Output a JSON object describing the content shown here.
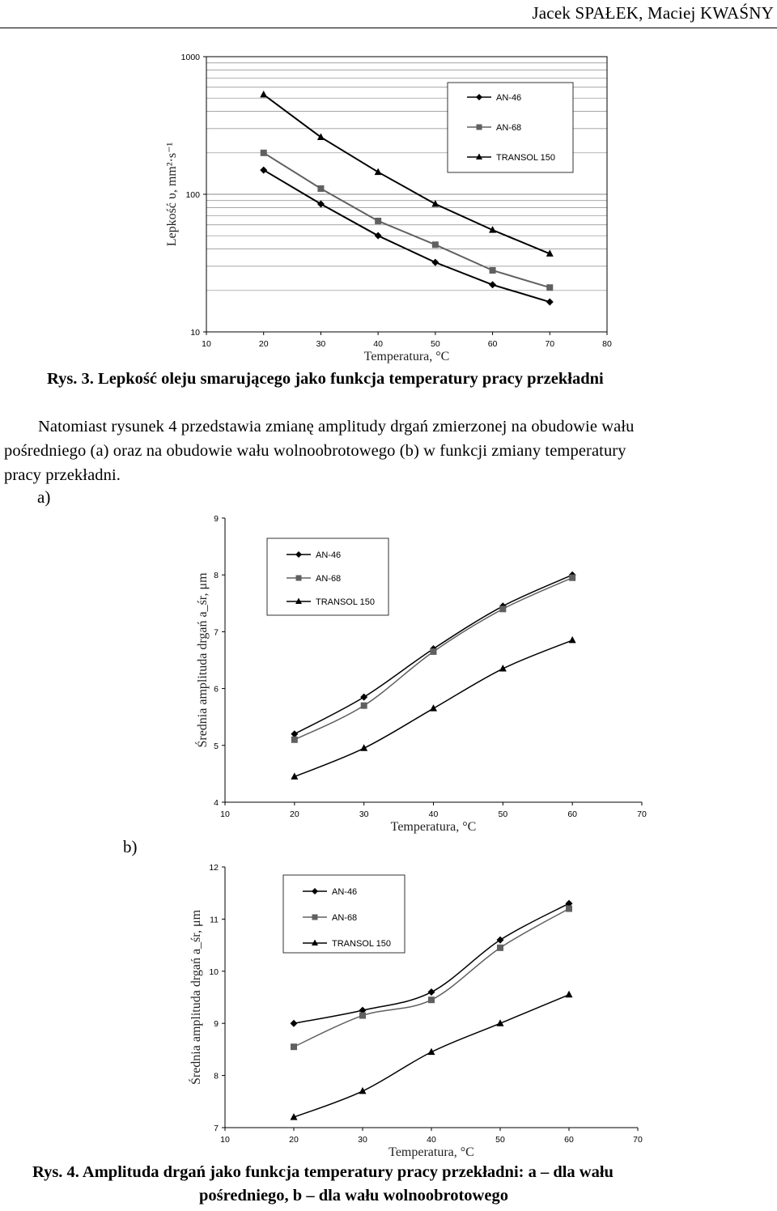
{
  "header": {
    "authors": "Jacek SPAŁEK, Maciej KWAŚNY"
  },
  "figure3": {
    "caption": "Rys. 3. Lepkość oleju smarującego jako funkcja temperatury pracy przekładni",
    "chart_data": {
      "type": "line",
      "xlabel": "Temperatura, °C",
      "ylabel": "Lepkość υ, mm²·s⁻¹",
      "y_scale": "log",
      "xlim": [
        10,
        80
      ],
      "ylim": [
        10,
        1000
      ],
      "x_ticks": [
        "10",
        "20",
        "30",
        "40",
        "50",
        "60",
        "70",
        "80"
      ],
      "y_ticks": [
        "10",
        "100",
        "1000"
      ],
      "grid": true,
      "legend_position": "top-right",
      "series": [
        {
          "name": "AN-46",
          "marker": "diamond",
          "color": "#000000",
          "x": [
            20,
            30,
            40,
            50,
            60,
            70
          ],
          "y": [
            150,
            85,
            50,
            32,
            22,
            16.5
          ]
        },
        {
          "name": "AN-68",
          "marker": "square",
          "color": "#606060",
          "x": [
            20,
            30,
            40,
            50,
            60,
            70
          ],
          "y": [
            200,
            110,
            64,
            43,
            28,
            21
          ]
        },
        {
          "name": "TRANSOL 150",
          "marker": "triangle",
          "color": "#000000",
          "x": [
            20,
            30,
            40,
            50,
            60,
            70
          ],
          "y": [
            530,
            260,
            145,
            85,
            55,
            37
          ]
        }
      ]
    }
  },
  "paragraph": {
    "line1": "Natomiast rysunek 4 przedstawia zmianę amplitudy drgań zmierzonej na obudowie wału",
    "line2": "pośredniego (a) oraz na obudowie wału wolnoobrotowego (b) w funkcji zmiany temperatury",
    "line3": "pracy przekładni."
  },
  "panel_a": {
    "label": "a)"
  },
  "panel_b": {
    "label": "b)"
  },
  "figure4a": {
    "chart_data": {
      "type": "line",
      "xlabel": "Temperatura, °C",
      "ylabel": "Średnia amplituda drgań a_śr, μm",
      "xlim": [
        10,
        70
      ],
      "ylim": [
        4,
        9
      ],
      "x_ticks": [
        "10",
        "20",
        "30",
        "40",
        "50",
        "60",
        "70"
      ],
      "y_ticks": [
        "4",
        "5",
        "6",
        "7",
        "8",
        "9"
      ],
      "grid": false,
      "legend_position": "top-left",
      "series": [
        {
          "name": "AN-46",
          "marker": "diamond",
          "color": "#000000",
          "x": [
            20,
            30,
            40,
            50,
            60
          ],
          "y": [
            5.2,
            5.85,
            6.7,
            7.45,
            8.0
          ]
        },
        {
          "name": "AN-68",
          "marker": "square",
          "color": "#606060",
          "x": [
            20,
            30,
            40,
            50,
            60
          ],
          "y": [
            5.1,
            5.7,
            6.65,
            7.4,
            7.95
          ]
        },
        {
          "name": "TRANSOL 150",
          "marker": "triangle",
          "color": "#000000",
          "x": [
            20,
            30,
            40,
            50,
            60
          ],
          "y": [
            4.45,
            4.95,
            5.65,
            6.35,
            6.85
          ]
        }
      ]
    }
  },
  "figure4b": {
    "chart_data": {
      "type": "line",
      "xlabel": "Temperatura, °C",
      "ylabel": "Średnia amplituda drgań a_śr, μm",
      "xlim": [
        10,
        70
      ],
      "ylim": [
        7,
        12
      ],
      "x_ticks": [
        "10",
        "20",
        "30",
        "40",
        "50",
        "60",
        "70"
      ],
      "y_ticks": [
        "7",
        "8",
        "9",
        "10",
        "11",
        "12"
      ],
      "grid": false,
      "legend_position": "top-center",
      "series": [
        {
          "name": "AN-46",
          "marker": "diamond",
          "color": "#000000",
          "x": [
            20,
            30,
            40,
            50,
            60
          ],
          "y": [
            9.0,
            9.25,
            9.6,
            10.6,
            11.3
          ]
        },
        {
          "name": "AN-68",
          "marker": "square",
          "color": "#606060",
          "x": [
            20,
            30,
            40,
            50,
            60
          ],
          "y": [
            8.55,
            9.15,
            9.45,
            10.45,
            11.2
          ]
        },
        {
          "name": "TRANSOL 150",
          "marker": "triangle",
          "color": "#000000",
          "x": [
            20,
            30,
            40,
            50,
            60
          ],
          "y": [
            7.2,
            7.7,
            8.45,
            9.0,
            9.55
          ]
        }
      ]
    }
  },
  "figure4": {
    "caption_line1": "Rys. 4. Amplituda drgań jako funkcja temperatury pracy przekładni: a – dla wału",
    "caption_line2": "pośredniego, b – dla wału wolnoobrotowego"
  }
}
